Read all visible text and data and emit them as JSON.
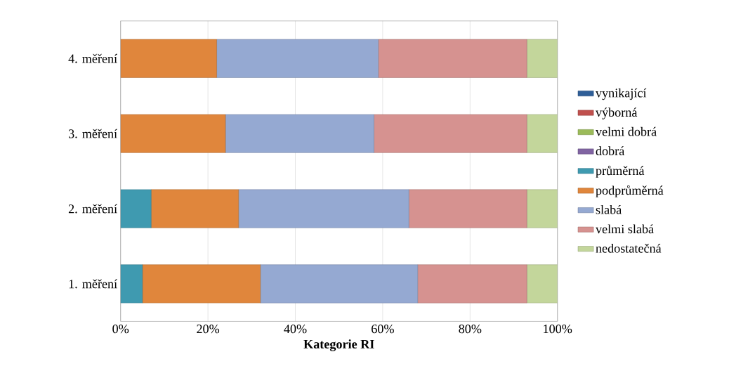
{
  "chart_data": {
    "type": "bar",
    "orientation": "horizontal",
    "stacked": true,
    "xlabel": "Kategorie RI",
    "categories": [
      "4. měření",
      "3. měření",
      "2. měření",
      "1. měření"
    ],
    "xlim": [
      0,
      100
    ],
    "xticks": [
      {
        "value": 0,
        "label": "0%"
      },
      {
        "value": 20,
        "label": "20%"
      },
      {
        "value": 40,
        "label": "40%"
      },
      {
        "value": 60,
        "label": "60%"
      },
      {
        "value": 80,
        "label": "80%"
      },
      {
        "value": 100,
        "label": "100%"
      }
    ],
    "grid": "x",
    "legend": "right",
    "series": [
      {
        "name": "vynikající",
        "color": "#2f5f98",
        "values": [
          0,
          0,
          0,
          0
        ]
      },
      {
        "name": "výborná",
        "color": "#c0504d",
        "values": [
          0,
          0,
          0,
          0
        ]
      },
      {
        "name": "velmi dobrá",
        "color": "#9bbb59",
        "values": [
          0,
          0,
          0,
          0
        ]
      },
      {
        "name": "dobrá",
        "color": "#8064a2",
        "values": [
          0,
          0,
          0,
          0
        ]
      },
      {
        "name": "průměrná",
        "color": "#3f9ab0",
        "values": [
          0,
          0,
          7,
          5
        ]
      },
      {
        "name": "podprůměrná",
        "color": "#e0863c",
        "values": [
          22,
          24,
          20,
          27
        ]
      },
      {
        "name": "slabá",
        "color": "#95a9d2",
        "values": [
          37,
          34,
          39,
          36
        ]
      },
      {
        "name": "velmi slabá",
        "color": "#d69290",
        "values": [
          34,
          35,
          27,
          25
        ]
      },
      {
        "name": "nedostatečná",
        "color": "#c3d69b",
        "values": [
          7,
          7,
          7,
          7
        ]
      }
    ]
  }
}
